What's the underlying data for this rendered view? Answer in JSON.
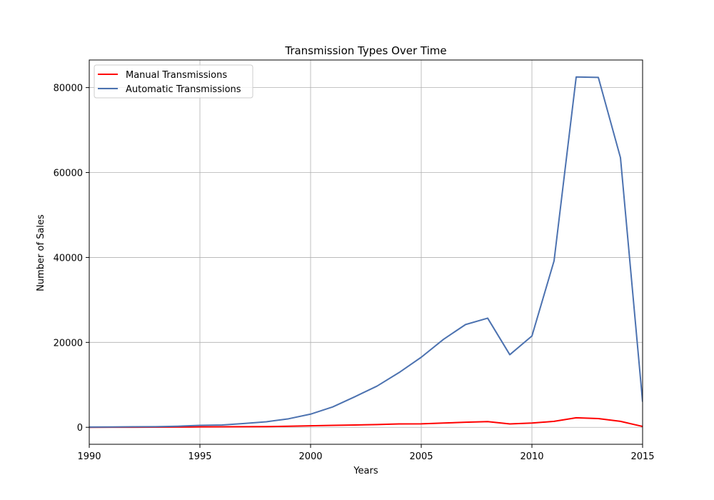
{
  "chart_data": {
    "type": "line",
    "title": "Transmission Types Over Time",
    "xlabel": "Years",
    "ylabel": "Number of Sales",
    "xlim": [
      1990,
      2015
    ],
    "ylim": [
      -4000,
      86500
    ],
    "xticks": [
      1990,
      1995,
      2000,
      2005,
      2010,
      2015
    ],
    "yticks": [
      0,
      20000,
      40000,
      60000,
      80000
    ],
    "grid": true,
    "legend_position": "top-left",
    "x": [
      1990,
      1991,
      1992,
      1993,
      1994,
      1995,
      1996,
      1997,
      1998,
      1999,
      2000,
      2001,
      2002,
      2003,
      2004,
      2005,
      2006,
      2007,
      2008,
      2009,
      2010,
      2011,
      2012,
      2013,
      2014,
      2015
    ],
    "series": [
      {
        "name": "Manual Transmissions",
        "color": "#ff0000",
        "values": [
          0,
          10,
          20,
          30,
          60,
          100,
          120,
          150,
          170,
          250,
          350,
          450,
          550,
          650,
          800,
          820,
          1000,
          1200,
          1350,
          800,
          1000,
          1400,
          2250,
          2050,
          1400,
          200
        ]
      },
      {
        "name": "Automatic Transmissions",
        "color": "#4c72b0",
        "values": [
          50,
          80,
          120,
          150,
          250,
          450,
          550,
          900,
          1300,
          2000,
          3100,
          4800,
          7200,
          9700,
          12900,
          16500,
          20700,
          24200,
          25700,
          17100,
          21500,
          39200,
          82500,
          82400,
          63500,
          6000
        ]
      }
    ]
  }
}
